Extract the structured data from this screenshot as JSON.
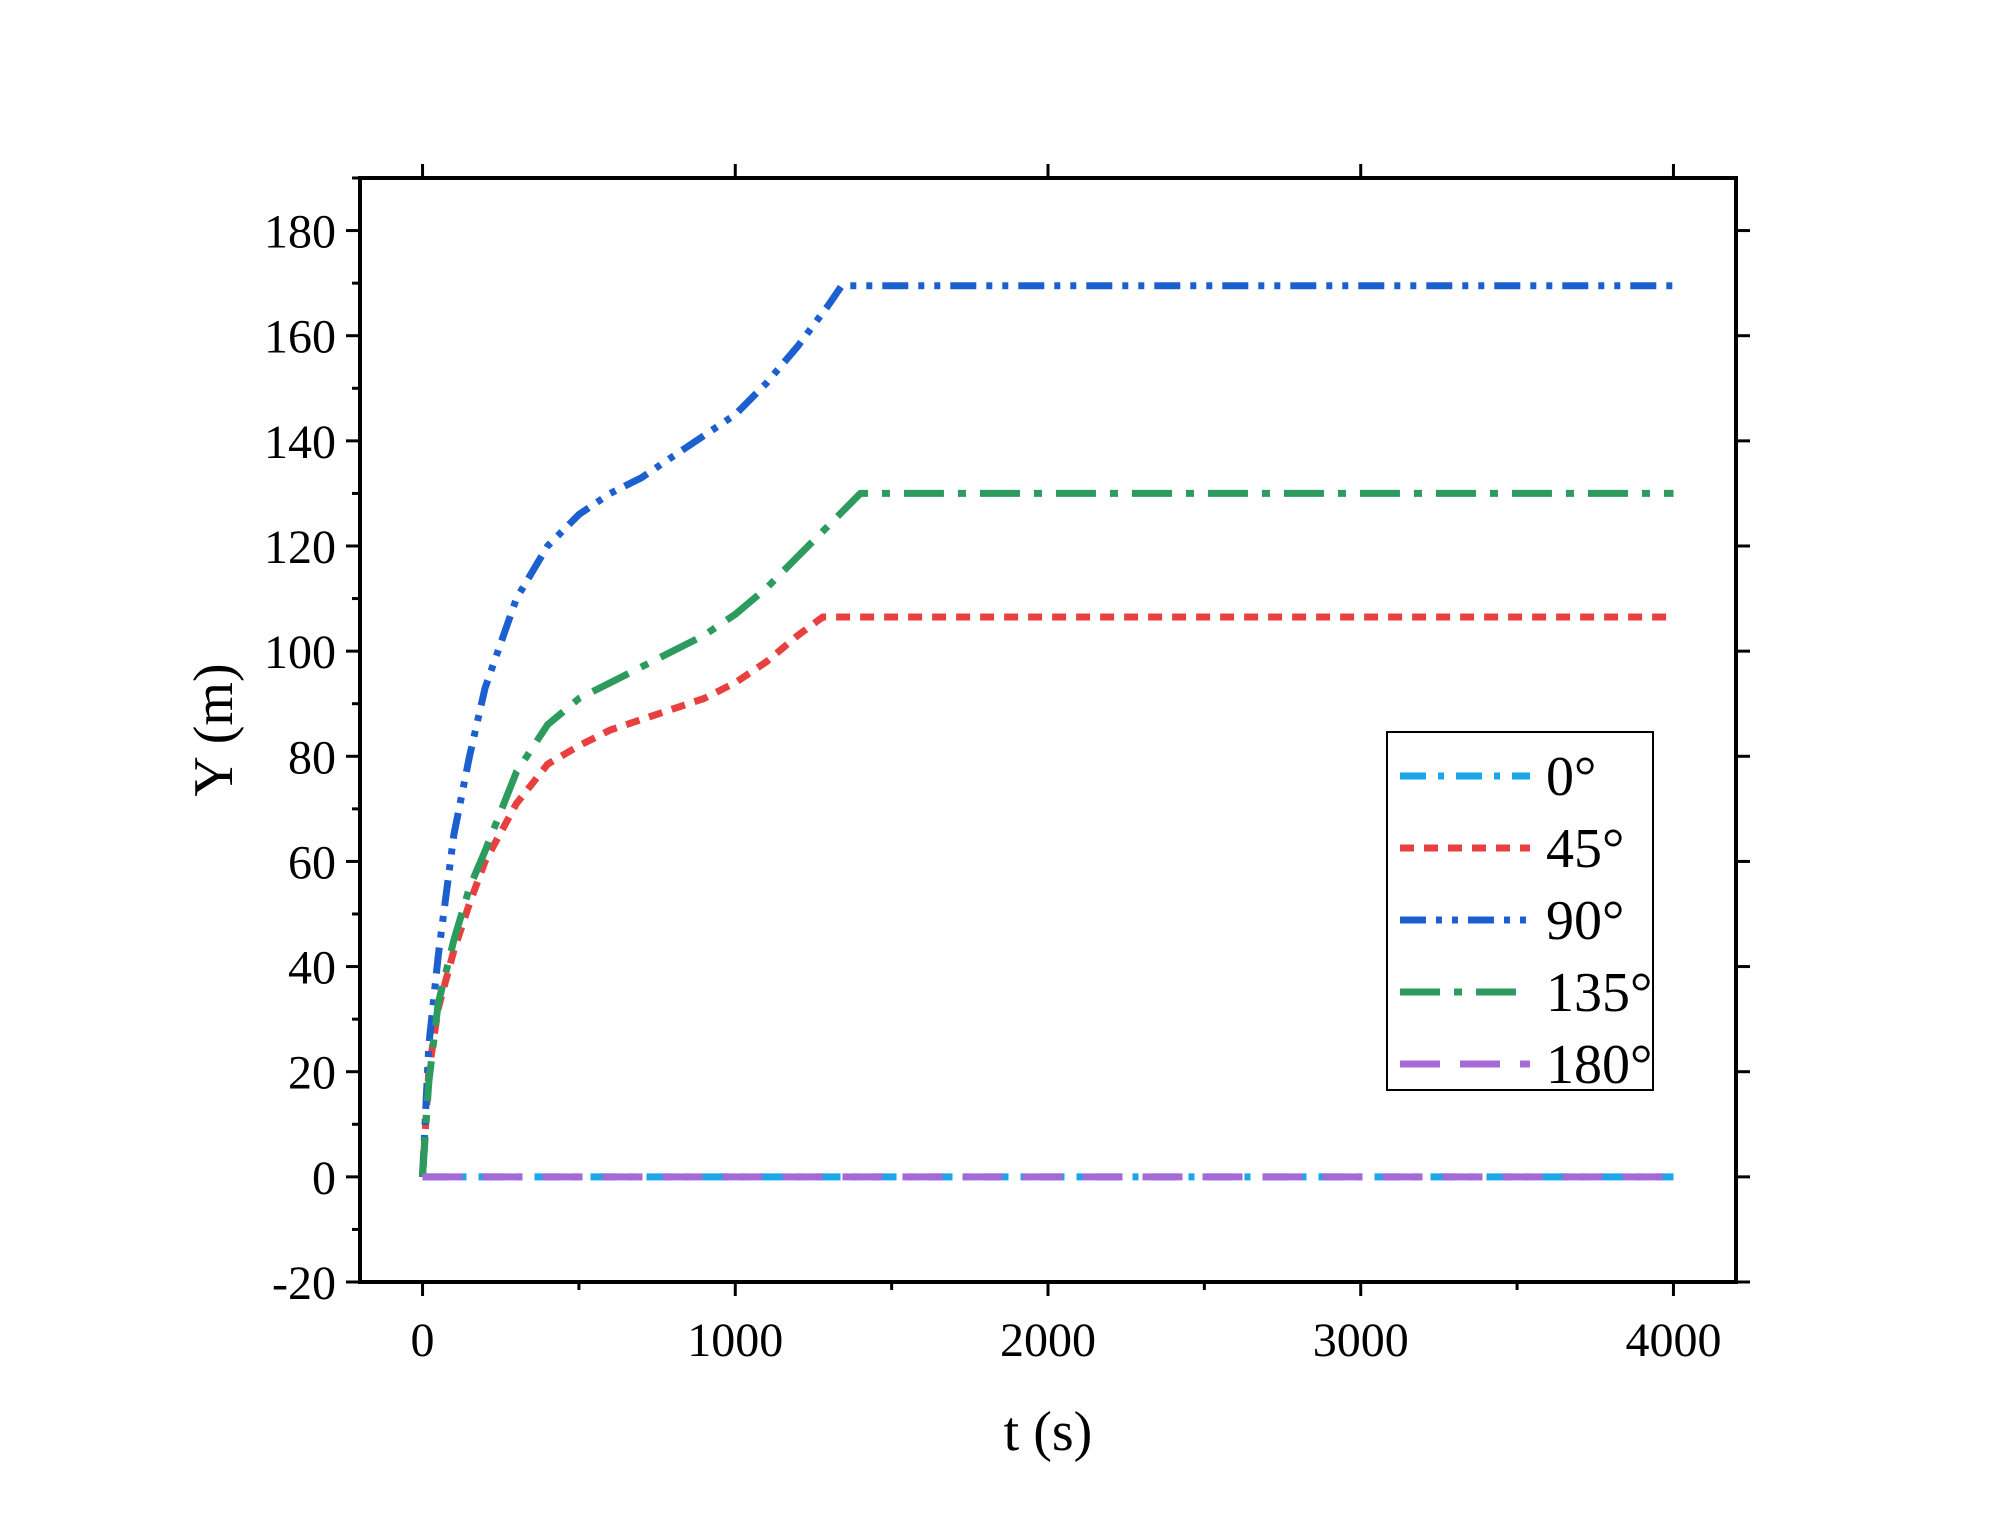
{
  "chart_data": {
    "type": "line",
    "title": "",
    "xlabel": "t (s)",
    "ylabel": "Y (m)",
    "xlim": [
      -200,
      4200
    ],
    "ylim": [
      -20,
      190
    ],
    "x_ticks": [
      0,
      1000,
      2000,
      3000,
      4000
    ],
    "y_ticks": [
      -20,
      0,
      20,
      40,
      60,
      80,
      100,
      120,
      140,
      160,
      180
    ],
    "grid": false,
    "legend_position": "center-right",
    "series": [
      {
        "name": "0°",
        "color": "#1aa6e8",
        "dash": "dash-dot",
        "x": [
          0,
          4000
        ],
        "y": [
          0,
          0
        ]
      },
      {
        "name": "45°",
        "color": "#e8403f",
        "dash": "short-dash",
        "x": [
          0,
          20,
          50,
          100,
          150,
          200,
          300,
          400,
          500,
          600,
          700,
          800,
          900,
          1000,
          1100,
          1200,
          1280,
          1350,
          1500,
          2000,
          3000,
          4000
        ],
        "y": [
          0,
          20,
          32,
          43,
          52,
          60,
          71,
          78.5,
          82,
          85,
          87,
          89,
          91,
          94,
          98,
          103,
          106.5,
          106.5,
          106.5,
          106.5,
          106.5,
          106.5
        ]
      },
      {
        "name": "90°",
        "color": "#1c60d0",
        "dash": "dash-dot-dot",
        "x": [
          0,
          20,
          50,
          100,
          150,
          200,
          300,
          400,
          500,
          600,
          700,
          800,
          900,
          1000,
          1100,
          1200,
          1300,
          1340,
          1500,
          2000,
          3000,
          4000
        ],
        "y": [
          0,
          25,
          42,
          65,
          80,
          93,
          110,
          120,
          126,
          130,
          133,
          137,
          141,
          145,
          151,
          158,
          166,
          169.5,
          169.5,
          169.5,
          169.5,
          169.5
        ]
      },
      {
        "name": "135°",
        "color": "#2e9b5e",
        "dash": "long-dash-dot",
        "x": [
          0,
          20,
          50,
          100,
          150,
          200,
          300,
          400,
          500,
          600,
          700,
          800,
          900,
          1000,
          1100,
          1200,
          1300,
          1400,
          1500,
          2000,
          3000,
          4000
        ],
        "y": [
          0,
          18,
          33,
          45,
          55,
          62,
          77,
          86,
          91,
          94,
          97,
          100,
          103,
          107,
          112,
          118,
          124,
          130,
          130,
          130,
          130,
          130
        ]
      },
      {
        "name": "180°",
        "color": "#a56ad8",
        "dash": "long-dash",
        "x": [
          0,
          4000
        ],
        "y": [
          0,
          0
        ]
      }
    ]
  }
}
